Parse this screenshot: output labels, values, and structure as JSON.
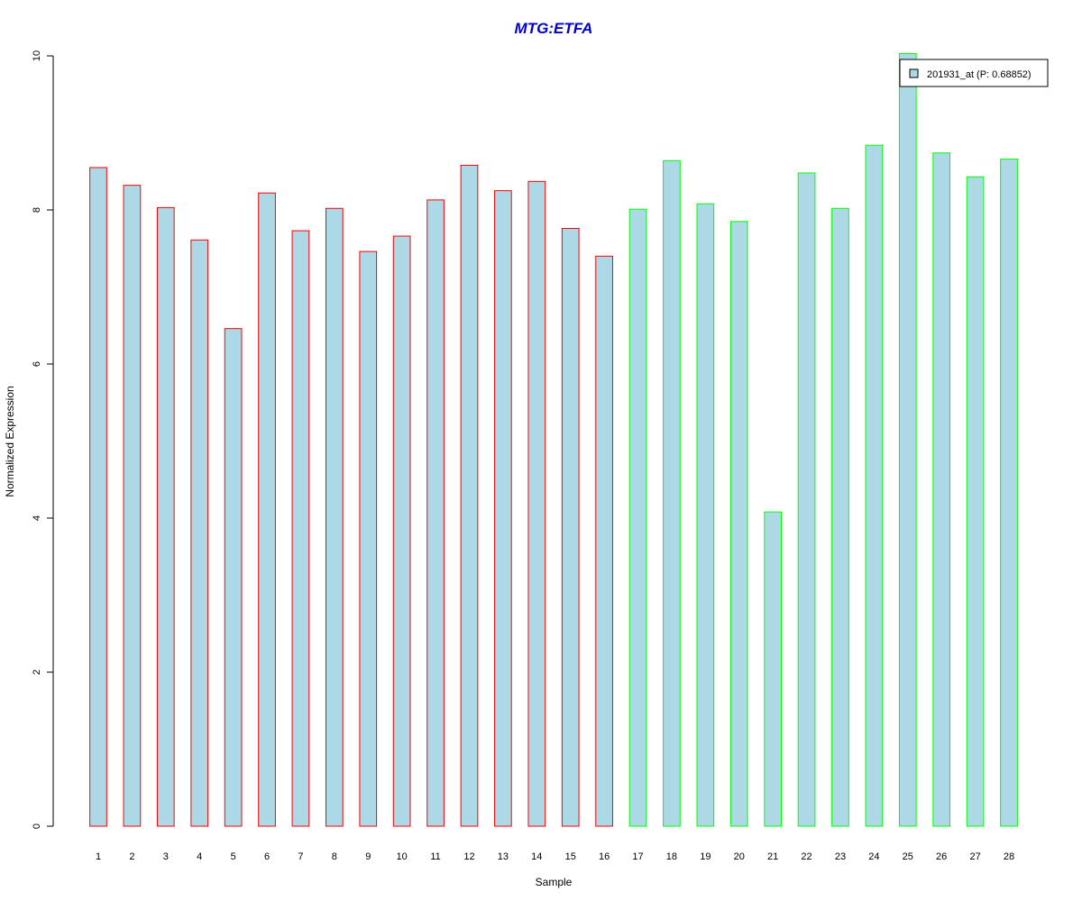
{
  "chart_data": {
    "type": "bar",
    "title": "MTG:ETFA",
    "xlabel": "Sample",
    "ylabel": "Normalized Expression",
    "ylim": [
      0,
      10
    ],
    "yticks": [
      0,
      2,
      4,
      6,
      8,
      10
    ],
    "grid": false,
    "legend_position": "top-right",
    "categories": [
      "1",
      "2",
      "3",
      "4",
      "5",
      "6",
      "7",
      "8",
      "9",
      "10",
      "11",
      "12",
      "13",
      "14",
      "15",
      "16",
      "17",
      "18",
      "19",
      "20",
      "21",
      "22",
      "23",
      "24",
      "25",
      "26",
      "27",
      "28"
    ],
    "series": [
      {
        "name": "201931_at (P: 0.68852)",
        "values": [
          8.55,
          8.32,
          8.03,
          7.61,
          6.46,
          8.22,
          7.73,
          8.02,
          7.46,
          7.66,
          8.13,
          8.58,
          8.25,
          8.37,
          7.76,
          7.4,
          8.01,
          8.64,
          8.08,
          7.85,
          4.08,
          8.48,
          8.02,
          8.84,
          10.03,
          8.74,
          8.43,
          8.66
        ]
      }
    ],
    "groups": [
      1,
      1,
      1,
      1,
      1,
      1,
      1,
      1,
      1,
      1,
      1,
      1,
      1,
      1,
      1,
      1,
      2,
      2,
      2,
      2,
      2,
      2,
      2,
      2,
      2,
      2,
      2,
      2
    ],
    "colors": {
      "title": "#0000cc",
      "bar_fill": "#add8e6",
      "group_1_border": "#ff0000",
      "group_2_border": "#00ff00",
      "axis": "#000000"
    }
  }
}
